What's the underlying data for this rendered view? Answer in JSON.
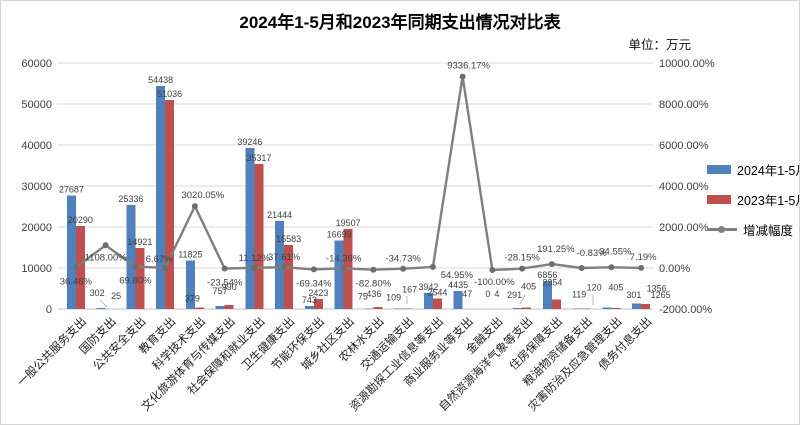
{
  "header": {
    "title": "2024年1-5月和2023年同期支出情况对比表",
    "unit_label": "单位：万元"
  },
  "legend": {
    "position": "right",
    "items": [
      {
        "label": "2024年1-5月",
        "color": "#4F81BD",
        "type": "bar"
      },
      {
        "label": "2023年1-5月",
        "color": "#C0504D",
        "type": "bar"
      },
      {
        "label": "增减幅度",
        "color": "#7F7F7F",
        "type": "line"
      }
    ]
  },
  "chart_data": {
    "type": "bar",
    "subtype": "bar+line-combo",
    "title": "2024年1-5月和2023年同期支出情况对比表",
    "unit": "万元",
    "grid": true,
    "legend_position": "right",
    "categories": [
      "一般公共服务支出",
      "国防支出",
      "公共安全支出",
      "教育支出",
      "科学技术支出",
      "文化旅游体育与传媒支出",
      "社会保障和就业支出",
      "卫生健康支出",
      "节能环保支出",
      "城乡社区支出",
      "农林水支出",
      "交通运输支出",
      "资源勘探工业信息等支出",
      "商业服务业等支出",
      "金融支出",
      "自然资源海洋气象等支出",
      "住房保障支出",
      "粮油物资储备支出",
      "灾害防治及应急管理支出",
      "债务付息支出"
    ],
    "series": [
      {
        "name": "2024年1-5月",
        "type": "bar",
        "axis": "left",
        "color": "#4F81BD",
        "values": [
          27687,
          302,
          25336,
          54438,
          11825,
          757,
          39246,
          21444,
          743,
          16699,
          75,
          109,
          3942,
          4435,
          0,
          291,
          6856,
          119,
          405,
          1356
        ]
      },
      {
        "name": "2023年1-5月",
        "type": "bar",
        "axis": "left",
        "color": "#C0504D",
        "values": [
          20290,
          25,
          14921,
          51036,
          379,
          990,
          35317,
          15583,
          2423,
          19507,
          436,
          167,
          2544,
          47,
          4,
          405,
          2354,
          120,
          301,
          1265
        ]
      },
      {
        "name": "增减幅度",
        "type": "line",
        "axis": "right",
        "color": "#7F7F7F",
        "values": [
          36.46,
          1108.0,
          69.8,
          6.67,
          3020.05,
          -23.54,
          11.12,
          37.61,
          -69.34,
          -14.39,
          -82.8,
          -34.73,
          54.95,
          9336.17,
          -100.0,
          -28.15,
          191.25,
          -0.83,
          34.55,
          7.19
        ],
        "labels": [
          "36.46%",
          "1108.00%",
          "69.80%",
          "6.67%",
          "3020.05%",
          "-23.54%",
          "11.12%",
          "37.61%",
          "-69.34%",
          "-14.39%",
          "-82.80%",
          "-34.73%",
          "54.95%",
          "9336.17%",
          "-100.00%",
          "-28.15%",
          "191.25%",
          "-0.83%",
          "34.55%",
          "7.19%"
        ]
      }
    ],
    "left_axis": {
      "min": 0,
      "max": 60000,
      "step": 10000,
      "ticks": [
        "0",
        "10000",
        "20000",
        "30000",
        "40000",
        "50000",
        "60000"
      ]
    },
    "right_axis": {
      "min": -2000,
      "max": 10000,
      "step": 2000,
      "ticks": [
        "-2000.00%",
        "0.00%",
        "2000.00%",
        "4000.00%",
        "6000.00%",
        "8000.00%",
        "10000.00%"
      ]
    }
  },
  "colors": {
    "bar_2024": "#4F81BD",
    "bar_2023": "#C0504D",
    "trend_line": "#7F7F7F",
    "gridline": "#D9D9D9",
    "axis_text": "#404040",
    "label_text": "#404040"
  }
}
